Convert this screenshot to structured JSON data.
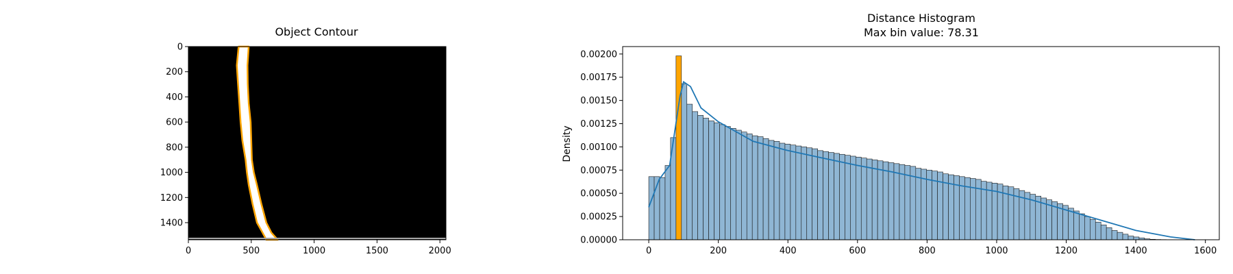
{
  "chart_data": [
    {
      "type": "image",
      "title": "Object Contour",
      "xlim": [
        0,
        2048
      ],
      "ylim": [
        1536,
        0
      ],
      "x_ticks": [
        0,
        500,
        1000,
        1500,
        2000
      ],
      "y_ticks": [
        0,
        200,
        400,
        600,
        800,
        1000,
        1200,
        1400
      ],
      "background_color": "#000000",
      "object_color": "#ffffff",
      "contour_color": "#ffa500",
      "contour_left_x": [
        400,
        385,
        395,
        405,
        415,
        430,
        455,
        465,
        480,
        510,
        545,
        590,
        620
      ],
      "contour_right_x": [
        480,
        470,
        472,
        480,
        495,
        500,
        505,
        520,
        545,
        580,
        620,
        660,
        710
      ],
      "contour_y": [
        0,
        150,
        300,
        450,
        600,
        750,
        900,
        1000,
        1100,
        1250,
        1400,
        1480,
        1536
      ]
    },
    {
      "type": "histogram",
      "title": "Distance Histogram",
      "subtitle": "Max bin value: 78.31",
      "xlabel": "",
      "ylabel": "Density",
      "xlim": [
        -75,
        1640
      ],
      "ylim": [
        0,
        0.00208
      ],
      "x_ticks": [
        0,
        200,
        400,
        600,
        800,
        1000,
        1200,
        1400,
        1600
      ],
      "y_ticks": [
        "0.00000",
        "0.00025",
        "0.00050",
        "0.00075",
        "0.00100",
        "0.00125",
        "0.00150",
        "0.00175",
        "0.00200"
      ],
      "bin_start": 0,
      "bin_width": 15.66,
      "highlight_bin_index": 5,
      "bar_color": "#8fb6d4",
      "bar_edge_color": "#1a1a1a",
      "highlight_color": "#ffa500",
      "kde_color": "#1f77b4",
      "values": [
        0.00068,
        0.00068,
        0.00067,
        0.0008,
        0.0011,
        0.00198,
        0.00168,
        0.00146,
        0.00138,
        0.00134,
        0.00131,
        0.00128,
        0.00126,
        0.00124,
        0.00122,
        0.0012,
        0.00118,
        0.00116,
        0.00114,
        0.00112,
        0.00111,
        0.00109,
        0.00107,
        0.00106,
        0.00104,
        0.00103,
        0.00102,
        0.00101,
        0.001,
        0.00099,
        0.00098,
        0.00096,
        0.00095,
        0.00094,
        0.00093,
        0.00092,
        0.00091,
        0.0009,
        0.00089,
        0.00088,
        0.00087,
        0.00086,
        0.00085,
        0.00084,
        0.00083,
        0.00082,
        0.00081,
        0.0008,
        0.00079,
        0.00077,
        0.00076,
        0.00075,
        0.00074,
        0.00073,
        0.00071,
        0.0007,
        0.00069,
        0.00068,
        0.00067,
        0.00066,
        0.00065,
        0.00063,
        0.00062,
        0.00061,
        0.0006,
        0.00058,
        0.00057,
        0.00055,
        0.00053,
        0.00051,
        0.00049,
        0.00047,
        0.00045,
        0.00043,
        0.00041,
        0.00039,
        0.00037,
        0.00034,
        0.00031,
        0.00028,
        0.00025,
        0.00022,
        0.00019,
        0.00016,
        0.00013,
        0.0001,
        8e-05,
        6e-05,
        4e-05,
        3e-05,
        2e-05,
        1e-05,
        5e-06,
        3e-06,
        2e-06,
        1e-06,
        1e-06,
        5e-07,
        5e-07,
        2e-07
      ],
      "kde_x": [
        0,
        30,
        60,
        90,
        100,
        120,
        150,
        200,
        300,
        400,
        500,
        600,
        700,
        800,
        900,
        1000,
        1100,
        1200,
        1300,
        1400,
        1500,
        1570
      ],
      "kde_y": [
        0.00035,
        0.00065,
        0.0008,
        0.00155,
        0.0017,
        0.00165,
        0.00142,
        0.00127,
        0.00106,
        0.00096,
        0.00088,
        0.0008,
        0.00073,
        0.00065,
        0.00058,
        0.00052,
        0.00043,
        0.00032,
        0.00021,
        0.0001,
        3e-05,
        0.0
      ]
    }
  ]
}
